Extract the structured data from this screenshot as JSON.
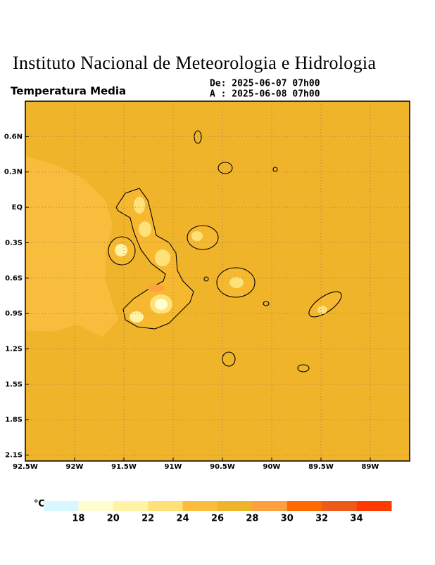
{
  "header": {
    "title": "Instituto Nacional de Meteorologia e Hidrologia",
    "subtitle": "Temperatura Media",
    "from": "De: 2025-06-07 07h00",
    "to": "A : 2025-06-08 07h00"
  },
  "map": {
    "lon_range": [
      -92.5,
      -88.6
    ],
    "lat_range": [
      -2.15,
      0.9
    ],
    "lon_ticks": [
      {
        "value": -92.5,
        "label": "92.5W"
      },
      {
        "value": -92,
        "label": "92W"
      },
      {
        "value": -91.5,
        "label": "91.5W"
      },
      {
        "value": -91,
        "label": "91W"
      },
      {
        "value": -90.5,
        "label": "90.5W"
      },
      {
        "value": -90,
        "label": "90W"
      },
      {
        "value": -89.5,
        "label": "89.5W"
      },
      {
        "value": -89,
        "label": "89W"
      }
    ],
    "lat_ticks": [
      {
        "value": 0.6,
        "label": "0.6N"
      },
      {
        "value": 0.3,
        "label": "0.3N"
      },
      {
        "value": 0,
        "label": "EQ"
      },
      {
        "value": -0.3,
        "label": "0.3S"
      },
      {
        "value": -0.6,
        "label": "0.6S"
      },
      {
        "value": -0.9,
        "label": "0.9S"
      },
      {
        "value": -1.2,
        "label": "1.2S"
      },
      {
        "value": -1.5,
        "label": "1.5S"
      },
      {
        "value": -1.8,
        "label": "1.8S"
      },
      {
        "value": -2.1,
        "label": "2.1S"
      }
    ],
    "grid": true
  },
  "legend": {
    "unit": "℃",
    "ticks": [
      18,
      20,
      22,
      24,
      26,
      28,
      30,
      32,
      34
    ],
    "colors": [
      "#d8f8ff",
      "#fffed0",
      "#fff3a8",
      "#ffe17a",
      "#fdbd3c",
      "#f0b42b",
      "#ffa040",
      "#ff6a00",
      "#ee5a1a",
      "#ff3a00"
    ]
  }
}
